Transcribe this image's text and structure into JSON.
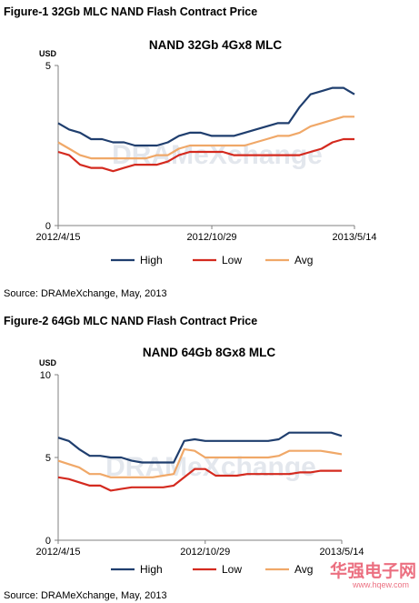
{
  "figures": [
    {
      "label": "Figure-1 32Gb MLC NAND Flash Contract Price",
      "source": "Source: DRAMeXchange, May, 2013"
    },
    {
      "label": "Figure-2 64Gb MLC NAND Flash Contract Price",
      "source": "Source: DRAMeXchange, May, 2013"
    }
  ],
  "watermark": {
    "text": "DRAMeXchange",
    "logo_text": "华强电子网",
    "logo_url": "www.hqew.com"
  },
  "colors": {
    "high": "#1f3e6e",
    "low": "#d42a1f",
    "avg": "#f0a868",
    "axis": "#808080"
  },
  "chart_data": [
    {
      "type": "line",
      "title": "NAND 32Gb 4Gx8 MLC",
      "ylabel": "USD",
      "ylim": [
        0,
        5
      ],
      "yticks": [
        0,
        5
      ],
      "x_tick_labels": [
        "2012/4/15",
        "2012/10/29",
        "2013/5/14"
      ],
      "n_points": 28,
      "legend_position": "bottom",
      "series": [
        {
          "name": "High",
          "color": "#1f3e6e",
          "values": [
            3.2,
            3.0,
            2.9,
            2.7,
            2.7,
            2.6,
            2.6,
            2.5,
            2.5,
            2.5,
            2.6,
            2.8,
            2.9,
            2.9,
            2.8,
            2.8,
            2.8,
            2.9,
            3.0,
            3.1,
            3.2,
            3.2,
            3.7,
            4.1,
            4.2,
            4.3,
            4.3,
            4.1
          ]
        },
        {
          "name": "Low",
          "color": "#d42a1f",
          "values": [
            2.3,
            2.2,
            1.9,
            1.8,
            1.8,
            1.7,
            1.8,
            1.9,
            1.9,
            1.9,
            2.0,
            2.2,
            2.3,
            2.3,
            2.3,
            2.3,
            2.2,
            2.2,
            2.2,
            2.2,
            2.2,
            2.2,
            2.2,
            2.3,
            2.4,
            2.6,
            2.7,
            2.7
          ]
        },
        {
          "name": "Avg",
          "color": "#f0a868",
          "values": [
            2.6,
            2.4,
            2.2,
            2.1,
            2.1,
            2.1,
            2.1,
            2.1,
            2.1,
            2.2,
            2.2,
            2.4,
            2.5,
            2.5,
            2.5,
            2.5,
            2.5,
            2.5,
            2.6,
            2.7,
            2.8,
            2.8,
            2.9,
            3.1,
            3.2,
            3.3,
            3.4,
            3.4
          ]
        }
      ]
    },
    {
      "type": "line",
      "title": "NAND 64Gb 8Gx8 MLC",
      "ylabel": "USD",
      "ylim": [
        0,
        10
      ],
      "yticks": [
        0,
        5,
        10
      ],
      "x_tick_labels": [
        "2012/4/15",
        "2012/10/29",
        "2013/5/14"
      ],
      "n_points": 28,
      "legend_position": "bottom",
      "series": [
        {
          "name": "High",
          "color": "#1f3e6e",
          "values": [
            6.2,
            6.0,
            5.5,
            5.1,
            5.1,
            5.0,
            5.0,
            4.8,
            4.7,
            4.7,
            4.7,
            4.7,
            6.0,
            6.1,
            6.0,
            6.0,
            6.0,
            6.0,
            6.0,
            6.0,
            6.0,
            6.1,
            6.5,
            6.5,
            6.5,
            6.5,
            6.5,
            6.3
          ]
        },
        {
          "name": "Low",
          "color": "#d42a1f",
          "values": [
            3.8,
            3.7,
            3.5,
            3.3,
            3.3,
            3.0,
            3.1,
            3.2,
            3.2,
            3.2,
            3.2,
            3.3,
            3.8,
            4.3,
            4.3,
            3.9,
            3.9,
            3.9,
            4.0,
            4.0,
            4.0,
            4.0,
            4.0,
            4.1,
            4.1,
            4.2,
            4.2,
            4.2
          ]
        },
        {
          "name": "Avg",
          "color": "#f0a868",
          "values": [
            4.8,
            4.6,
            4.4,
            4.0,
            4.0,
            3.8,
            3.8,
            3.8,
            3.8,
            3.8,
            3.9,
            4.0,
            5.5,
            5.4,
            5.0,
            5.0,
            5.0,
            5.0,
            5.0,
            5.0,
            5.0,
            5.1,
            5.4,
            5.4,
            5.4,
            5.4,
            5.3,
            5.2
          ]
        }
      ]
    }
  ]
}
